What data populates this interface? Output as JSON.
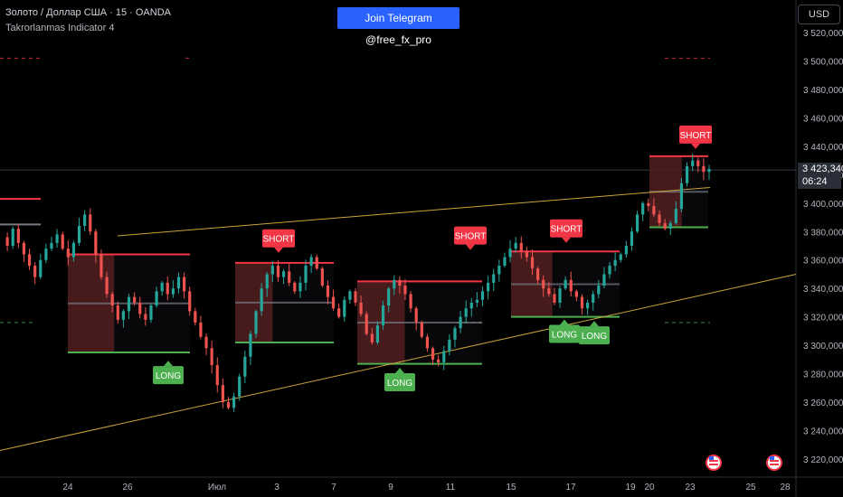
{
  "header": {
    "symbol_line": "Золото / Доллар США · 15 · OANDA",
    "indicator_line": "Takrorlanmas Indicator 4"
  },
  "telegram_button": "Join Telegram @free_fx_pro",
  "currency_label": "USD",
  "price_box": {
    "price": "3 423,340",
    "timer": "06:24"
  },
  "colors": {
    "background": "#000000",
    "bullish": "#26a69a",
    "bearish": "#ef5350",
    "trendline": "#c9a53a",
    "short_badge": "#f23645",
    "long_badge": "#4caf50",
    "supply_zone": "#5c1a1a",
    "resistance_line": "#f23645",
    "support_line": "#4caf50"
  },
  "chart_data": {
    "type": "candlestick",
    "instrument": "Золото / Доллар США",
    "timeframe": "15",
    "source": "OANDA",
    "current_price": 3423.34,
    "ylim": [
      3210,
      3530
    ],
    "y_ticks": [
      {
        "value": 3220,
        "label": "3 220,000"
      },
      {
        "value": 3240,
        "label": "3 240,000"
      },
      {
        "value": 3260,
        "label": "3 260,000"
      },
      {
        "value": 3280,
        "label": "3 280,000"
      },
      {
        "value": 3300,
        "label": "3 300,000"
      },
      {
        "value": 3320,
        "label": "3 320,000"
      },
      {
        "value": 3340,
        "label": "3 340,000"
      },
      {
        "value": 3360,
        "label": "3 360,000"
      },
      {
        "value": 3380,
        "label": "3 380,000"
      },
      {
        "value": 3400,
        "label": "3 400,000"
      },
      {
        "value": 3420,
        "label": "3 420,000"
      },
      {
        "value": 3440,
        "label": "3 440,000"
      },
      {
        "value": 3460,
        "label": "3 460,000"
      },
      {
        "value": 3480,
        "label": "3 480,000"
      },
      {
        "value": 3500,
        "label": "3 500,000"
      },
      {
        "value": 3520,
        "label": "3 520,000"
      }
    ],
    "x_ticks": [
      "20",
      "24",
      "26",
      "Июл",
      "3",
      "7",
      "9",
      "11",
      "15",
      "17",
      "19",
      "23",
      "25",
      "28"
    ],
    "price_path": [
      3376,
      3370,
      3382,
      3372,
      3364,
      3356,
      3348,
      3360,
      3368,
      3372,
      3378,
      3368,
      3362,
      3372,
      3384,
      3392,
      3380,
      3364,
      3348,
      3336,
      3328,
      3318,
      3324,
      3334,
      3330,
      3322,
      3318,
      3328,
      3338,
      3344,
      3336,
      3340,
      3348,
      3338,
      3324,
      3316,
      3306,
      3298,
      3286,
      3272,
      3260,
      3256,
      3264,
      3278,
      3292,
      3308,
      3324,
      3340,
      3350,
      3356,
      3348,
      3352,
      3344,
      3338,
      3344,
      3356,
      3362,
      3354,
      3342,
      3334,
      3326,
      3320,
      3332,
      3338,
      3330,
      3322,
      3308,
      3302,
      3314,
      3328,
      3340,
      3346,
      3342,
      3336,
      3326,
      3316,
      3306,
      3298,
      3290,
      3288,
      3296,
      3304,
      3312,
      3320,
      3326,
      3330,
      3332,
      3338,
      3344,
      3350,
      3356,
      3362,
      3368,
      3372,
      3366,
      3362,
      3354,
      3346,
      3340,
      3336,
      3330,
      3340,
      3346,
      3338,
      3334,
      3326,
      3330,
      3336,
      3342,
      3350,
      3356,
      3360,
      3364,
      3370,
      3380,
      3392,
      3400,
      3398,
      3392,
      3386,
      3382,
      3386,
      3396,
      3414,
      3426,
      3430,
      3426,
      3422,
      3424
    ],
    "trendlines": [
      {
        "label": "upper",
        "points": [
          [
            "24",
            3377
          ],
          [
            "23",
            3411
          ]
        ]
      },
      {
        "label": "lower",
        "points": [
          [
            "20",
            3226
          ],
          [
            "28",
            3350
          ]
        ]
      }
    ],
    "zones": [
      {
        "from": "24",
        "to": "Июл",
        "top": 3364,
        "bottom": 3295
      },
      {
        "from": "2",
        "to": "7",
        "top": 3358,
        "bottom": 3302
      },
      {
        "from": "8",
        "to": "11",
        "top": 3345,
        "bottom": 3287
      },
      {
        "from": "15",
        "to": "18",
        "top": 3366,
        "bottom": 3320
      },
      {
        "from": "20",
        "to": "23",
        "top": 3433,
        "bottom": 3383
      }
    ],
    "signals": [
      {
        "label": "LONG",
        "value": 3293,
        "near": "Июл"
      },
      {
        "label": "SHORT",
        "value": 3360,
        "near": "3"
      },
      {
        "label": "LONG",
        "value": 3288,
        "near": "9"
      },
      {
        "label": "SHORT",
        "value": 3362,
        "near": "12"
      },
      {
        "label": "SHORT",
        "value": 3367,
        "near": "17"
      },
      {
        "label": "LONG",
        "value": 3322,
        "near": "17"
      },
      {
        "label": "LONG",
        "value": 3321,
        "near": "18"
      },
      {
        "label": "SHORT",
        "value": 3433,
        "near": "23"
      }
    ]
  }
}
